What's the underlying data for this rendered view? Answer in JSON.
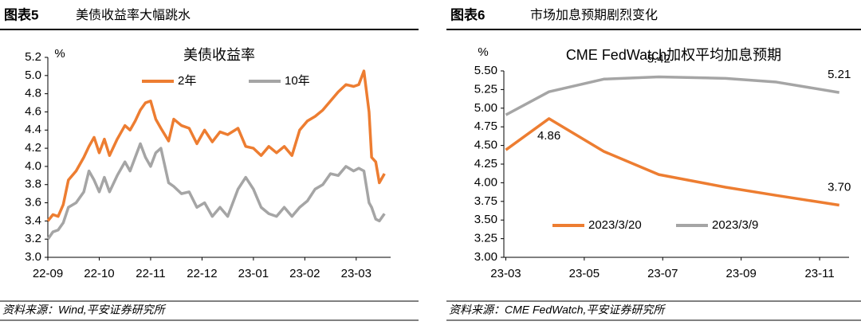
{
  "chart_data": [
    {
      "type": "line",
      "label": "图表5",
      "heading": "美债收益率大幅跳水",
      "title": "美债收益率",
      "y_unit": "%",
      "source": "资料来源：Wind,平安证券研究所",
      "x": [
        0,
        0.1,
        0.2,
        0.3,
        0.4,
        0.55,
        0.7,
        0.8,
        0.9,
        1.0,
        1.1,
        1.2,
        1.35,
        1.5,
        1.6,
        1.7,
        1.8,
        1.9,
        2.0,
        2.1,
        2.2,
        2.35,
        2.45,
        2.6,
        2.75,
        2.9,
        3.05,
        3.2,
        3.35,
        3.5,
        3.7,
        3.85,
        4.0,
        4.15,
        4.3,
        4.45,
        4.6,
        4.75,
        4.9,
        5.05,
        5.2,
        5.35,
        5.5,
        5.65,
        5.8,
        5.95,
        6.05,
        6.15,
        6.25,
        6.3,
        6.38,
        6.45,
        6.55
      ],
      "series": [
        {
          "name": "2年",
          "color": "#ed7d31",
          "values": [
            3.4,
            3.47,
            3.45,
            3.58,
            3.85,
            3.95,
            4.1,
            4.22,
            4.32,
            4.15,
            4.3,
            4.12,
            4.3,
            4.45,
            4.4,
            4.5,
            4.62,
            4.7,
            4.72,
            4.52,
            4.42,
            4.28,
            4.52,
            4.45,
            4.42,
            4.25,
            4.4,
            4.27,
            4.38,
            4.35,
            4.42,
            4.22,
            4.2,
            4.12,
            4.22,
            4.15,
            4.22,
            4.12,
            4.4,
            4.5,
            4.55,
            4.62,
            4.72,
            4.82,
            4.9,
            4.88,
            4.9,
            5.05,
            4.6,
            4.1,
            4.05,
            3.82,
            3.92
          ]
        },
        {
          "name": "10年",
          "color": "#a5a5a5",
          "values": [
            3.2,
            3.28,
            3.3,
            3.38,
            3.55,
            3.6,
            3.72,
            3.95,
            3.85,
            3.72,
            3.88,
            3.72,
            3.9,
            4.05,
            3.95,
            4.1,
            4.25,
            4.1,
            4.0,
            4.15,
            4.2,
            3.82,
            3.78,
            3.7,
            3.72,
            3.55,
            3.6,
            3.45,
            3.55,
            3.45,
            3.75,
            3.88,
            3.75,
            3.55,
            3.48,
            3.45,
            3.55,
            3.45,
            3.55,
            3.62,
            3.75,
            3.8,
            3.92,
            3.9,
            4.0,
            3.95,
            3.98,
            3.95,
            3.6,
            3.55,
            3.42,
            3.4,
            3.48
          ]
        }
      ],
      "xlim": [
        0,
        6.67
      ],
      "xticks": [
        {
          "value": 0,
          "label": "22-09"
        },
        {
          "value": 1,
          "label": "22-10"
        },
        {
          "value": 2,
          "label": "22-11"
        },
        {
          "value": 3,
          "label": "22-12"
        },
        {
          "value": 4,
          "label": "23-01"
        },
        {
          "value": 5,
          "label": "23-02"
        },
        {
          "value": 6,
          "label": "23-03"
        }
      ],
      "ylim": [
        3.0,
        5.2
      ],
      "yticks": [
        {
          "value": 3.0,
          "label": "3.0"
        },
        3.2,
        3.4,
        3.6,
        3.8,
        {
          "value": 4.0,
          "label": "4.0"
        },
        4.2,
        4.4,
        4.6,
        4.8,
        {
          "value": 5.0,
          "label": "5.0"
        },
        5.2
      ]
    },
    {
      "type": "line",
      "label": "图表6",
      "heading": "市场加息预期剧烈变化",
      "title": "CME FedWatch加权平均加息预期",
      "y_unit": "%",
      "source": "资料来源：CME FedWatch,平安证券研究所",
      "x": [
        0,
        1.1,
        2.5,
        3.9,
        5.6,
        6.9,
        8.5
      ],
      "series": [
        {
          "name": "2023/3/20",
          "color": "#ed7d31",
          "values": [
            4.44,
            4.86,
            4.42,
            4.11,
            3.94,
            3.83,
            3.7
          ],
          "value_labels": [
            null,
            "4.86",
            null,
            null,
            null,
            null,
            "3.70"
          ]
        },
        {
          "name": "2023/3/9",
          "color": "#a5a5a5",
          "values": [
            4.91,
            5.22,
            5.39,
            5.42,
            5.4,
            5.35,
            5.21
          ],
          "value_labels": [
            null,
            null,
            null,
            "5.42",
            null,
            null,
            "5.21"
          ]
        }
      ],
      "xlim": [
        -0.05,
        8.75
      ],
      "xticks": [
        {
          "value": 0,
          "label": "23-03"
        },
        {
          "value": 2,
          "label": "23-05"
        },
        {
          "value": 4,
          "label": "23-07"
        },
        {
          "value": 6,
          "label": "23-09"
        },
        {
          "value": 8,
          "label": "23-11"
        }
      ],
      "ylim": [
        3.0,
        5.5
      ],
      "yticks": [
        {
          "value": 3.0,
          "label": "3.00"
        },
        {
          "value": 3.25,
          "label": "3.25"
        },
        {
          "value": 3.5,
          "label": "3.50"
        },
        {
          "value": 3.75,
          "label": "3.75"
        },
        {
          "value": 4.0,
          "label": "4.00"
        },
        {
          "value": 4.25,
          "label": "4.25"
        },
        {
          "value": 4.5,
          "label": "4.50"
        },
        {
          "value": 4.75,
          "label": "4.75"
        },
        {
          "value": 5.0,
          "label": "5.00"
        },
        {
          "value": 5.25,
          "label": "5.25"
        },
        {
          "value": 5.5,
          "label": "5.50"
        }
      ]
    }
  ]
}
